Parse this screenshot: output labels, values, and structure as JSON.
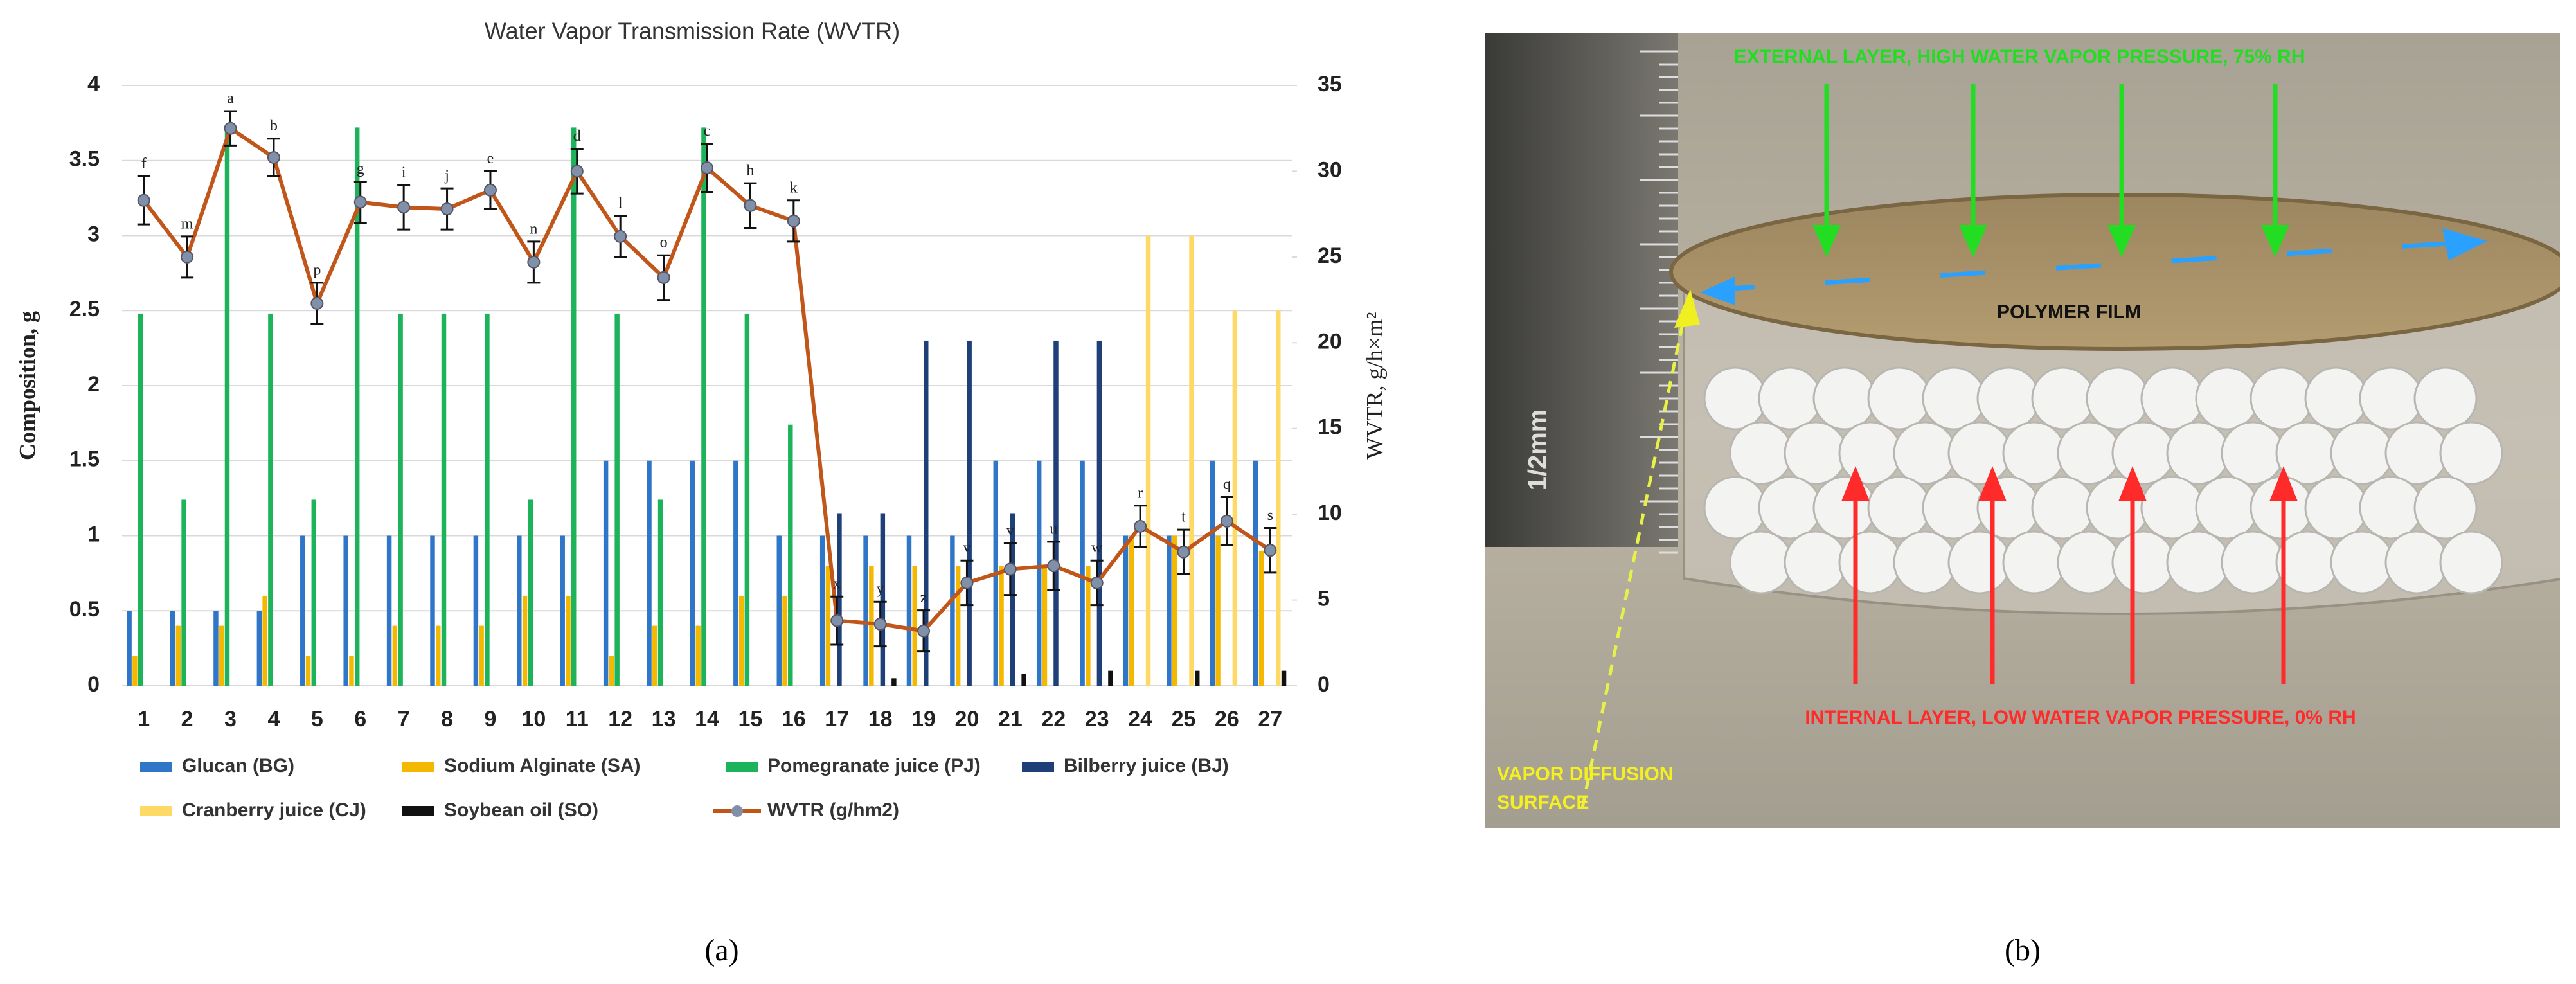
{
  "chart_data": {
    "type": "bar",
    "title": "Water Vapor Transmission Rate (WVTR)",
    "ylabel": "Composition, g",
    "y2label": "WVTR, g/h×m²",
    "categories": [
      "1",
      "2",
      "3",
      "4",
      "5",
      "6",
      "7",
      "8",
      "9",
      "10",
      "11",
      "12",
      "13",
      "14",
      "15",
      "16",
      "17",
      "18",
      "19",
      "20",
      "21",
      "22",
      "23",
      "24",
      "25",
      "26",
      "27"
    ],
    "ylim": [
      0,
      4
    ],
    "yticks": [
      0,
      0.5,
      1,
      1.5,
      2,
      2.5,
      3,
      3.5,
      4
    ],
    "y2lim": [
      0,
      35
    ],
    "y2ticks": [
      0,
      5,
      10,
      15,
      20,
      25,
      30,
      35
    ],
    "grid": true,
    "series": [
      {
        "name": "Glucan (BG)",
        "color": "#2f75c8",
        "values": [
          0.5,
          0.5,
          0.5,
          0.5,
          1,
          1,
          1,
          1,
          1,
          1,
          1,
          1.5,
          1.5,
          1.5,
          1.5,
          1,
          1,
          1,
          1,
          1,
          1.5,
          1.5,
          1.5,
          1,
          1,
          1.5,
          1.5
        ]
      },
      {
        "name": "Sodium Alginate (SA)",
        "color": "#f5b800",
        "values": [
          0.2,
          0.4,
          0.4,
          0.6,
          0.2,
          0.2,
          0.4,
          0.4,
          0.4,
          0.6,
          0.6,
          0.2,
          0.4,
          0.4,
          0.6,
          0.6,
          0.8,
          0.8,
          0.8,
          0.8,
          0.8,
          0.8,
          0.8,
          1,
          1,
          1,
          0.9
        ]
      },
      {
        "name": "Pomegranate juice (PJ)",
        "color": "#1db35a",
        "values": [
          2.48,
          1.24,
          3.72,
          2.48,
          1.24,
          3.72,
          2.48,
          2.48,
          2.48,
          1.24,
          3.72,
          2.48,
          1.24,
          3.72,
          2.48,
          1.74,
          0,
          0,
          0,
          0,
          0,
          0,
          0,
          0,
          0,
          0,
          0
        ]
      },
      {
        "name": "Bilberry juice (BJ)",
        "color": "#1f3f78",
        "values": [
          0,
          0,
          0,
          0,
          0,
          0,
          0,
          0,
          0,
          0,
          0,
          0,
          0,
          0,
          0,
          0,
          1.15,
          1.15,
          2.3,
          2.3,
          1.15,
          2.3,
          2.3,
          0,
          0,
          0,
          0
        ]
      },
      {
        "name": "Cranberry juice (CJ)",
        "color": "#ffd966",
        "values": [
          0,
          0,
          0,
          0,
          0,
          0,
          0,
          0,
          0,
          0,
          0,
          0,
          0,
          0,
          0,
          0,
          0,
          0,
          0,
          0,
          0,
          0,
          0,
          3,
          3,
          2.5,
          2.5
        ]
      },
      {
        "name": "Soybean oil (SO)",
        "color": "#111111",
        "values": [
          0,
          0,
          0,
          0,
          0,
          0,
          0,
          0,
          0,
          0,
          0,
          0,
          0,
          0,
          0,
          0,
          0,
          0.05,
          0,
          0,
          0.08,
          0,
          0.1,
          0,
          0.1,
          0,
          0.1
        ]
      },
      {
        "name": "WVTR (g/hm2)",
        "type": "line",
        "axis": "y2",
        "color": "#c0561a",
        "marker_color": "#8090a8",
        "values": [
          28.3,
          25,
          32.5,
          30.8,
          22.3,
          28.2,
          27.9,
          27.8,
          28.9,
          24.7,
          30,
          26.2,
          23.8,
          30.2,
          28,
          27.1,
          3.8,
          3.6,
          3.2,
          6,
          6.8,
          7,
          6,
          9.3,
          7.8,
          9.6,
          7.9
        ],
        "errors": [
          1.4,
          1.2,
          1,
          1.1,
          1.2,
          1.2,
          1.3,
          1.2,
          1.1,
          1.2,
          1.3,
          1.2,
          1.3,
          1.4,
          1.3,
          1.2,
          1.4,
          1.3,
          1.2,
          1.3,
          1.5,
          1.4,
          1.3,
          1.2,
          1.3,
          1.4,
          1.3
        ],
        "point_labels": [
          "f",
          "m",
          "a",
          "b",
          "p",
          "g",
          "i",
          "j",
          "e",
          "n",
          "d",
          "l",
          "o",
          "c",
          "h",
          "k",
          "x",
          "y",
          "z",
          "v",
          "v",
          "u",
          "w",
          "r",
          "t",
          "q",
          "s"
        ]
      }
    ]
  },
  "photo": {
    "external": "EXTERNAL LAYER, HIGH WATER VAPOR PRESSURE, 75% RH",
    "film": "POLYMER FILM",
    "internal": "INTERNAL LAYER, LOW WATER VAPOR PRESSURE, 0% RH",
    "surface": [
      "VAPOR DIFFUSION",
      "SURFACE"
    ],
    "ruler": "1/2mm"
  },
  "captions": [
    "(a)",
    "(b)"
  ]
}
